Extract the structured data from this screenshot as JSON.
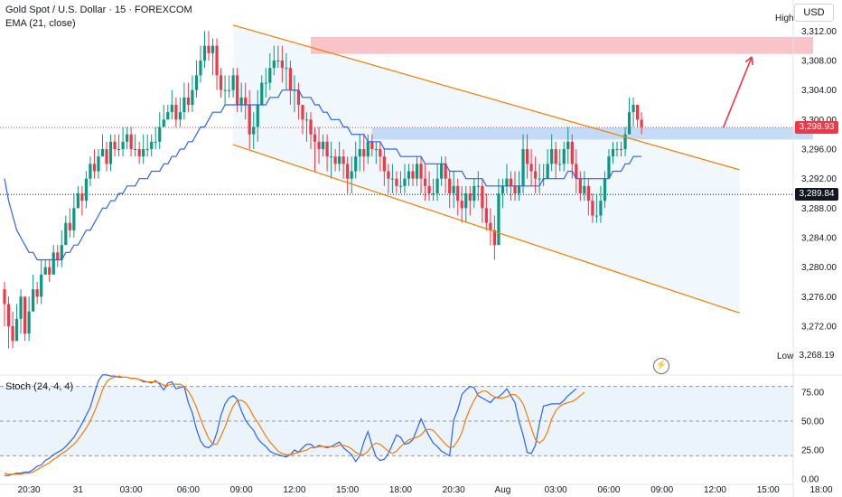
{
  "header": {
    "title": "Gold Spot / U.S. Dollar · 15 · FOREXCOM",
    "indicator": "EMA (21, close)"
  },
  "currency_button": "USD",
  "high_label": "High",
  "low_label": "Low",
  "low_value": "3,268.19",
  "current_price": "3,298.93",
  "marker_price": "3,289.84",
  "stoch_label": "Stoch (24, 4, 4)",
  "icons": {
    "alert": "lightning-icon"
  },
  "colors": {
    "up": "#089981",
    "down": "#f23645",
    "ema": "#2962ff",
    "channel": "#f57c00",
    "resistance_zone": "#f7b9bf",
    "support_zone": "#bbd6f7",
    "stoch_k": "#2962ff",
    "stoch_d": "#f57c00",
    "arrow": "#f23645"
  },
  "chart_data": [
    {
      "type": "candlestick",
      "title": "Gold Spot / U.S. Dollar · 15 · FOREXCOM",
      "ylim": [
        3266,
        3314
      ],
      "y_ticks": [
        "3,312.00",
        "3,308.00",
        "3,304.00",
        "3,300.00",
        "3,296.00",
        "3,292.00",
        "3,288.00",
        "3,284.00",
        "3,280.00",
        "3,276.00",
        "3,272.00"
      ],
      "y_tick_values": [
        3312,
        3308,
        3304,
        3300,
        3296,
        3292,
        3288,
        3284,
        3280,
        3276,
        3272
      ],
      "x_ticks": [
        "20:30",
        "31",
        "03:00",
        "06:00",
        "09:00",
        "12:00",
        "15:00",
        "18:00",
        "20:30",
        "Aug",
        "03:00",
        "06:00",
        "09:00",
        "12:00",
        "15:00",
        "18:00"
      ],
      "x_tick_index": [
        6,
        18,
        31,
        45,
        58,
        71,
        84,
        97,
        110,
        122,
        135,
        148,
        161,
        174,
        187,
        200
      ],
      "close": [
        3275,
        3272,
        3270,
        3273,
        3276,
        3271,
        3274,
        3277,
        3276,
        3279,
        3280,
        3279,
        3282,
        3281,
        3283,
        3286,
        3285,
        3288,
        3290,
        3289,
        3292,
        3294,
        3293,
        3295,
        3296,
        3294,
        3297,
        3296,
        3296,
        3297,
        3298,
        3296,
        3296,
        3295,
        3296,
        3296,
        3297,
        3297,
        3299,
        3300,
        3301,
        3302,
        3300,
        3301,
        3303,
        3302,
        3304,
        3306,
        3308,
        3310,
        3309,
        3310,
        3306,
        3304,
        3304,
        3304,
        3306,
        3302,
        3303,
        3302,
        3298,
        3299,
        3302,
        3305,
        3305,
        3307,
        3308,
        3308,
        3307,
        3307,
        3304,
        3304,
        3302,
        3300,
        3300,
        3298,
        3297,
        3296,
        3297,
        3295,
        3295,
        3294,
        3295,
        3294,
        3292,
        3293,
        3295,
        3296,
        3295,
        3297,
        3296,
        3296,
        3295,
        3293,
        3292,
        3292,
        3291,
        3291,
        3292,
        3293,
        3292,
        3294,
        3292,
        3291,
        3290,
        3290,
        3292,
        3294,
        3292,
        3290,
        3291,
        3289,
        3288,
        3290,
        3289,
        3291,
        3291,
        3288,
        3286,
        3285,
        3283,
        3290,
        3291,
        3292,
        3291,
        3290,
        3291,
        3296,
        3294,
        3293,
        3292,
        3292,
        3292,
        3294,
        3296,
        3294,
        3294,
        3296,
        3297,
        3294,
        3292,
        3290,
        3291,
        3289,
        3287,
        3287,
        3289,
        3292,
        3295,
        3296,
        3296,
        3296,
        3298,
        3301,
        3302,
        3300,
        3299
      ],
      "low": [
        3272,
        3269,
        3269,
        3270,
        3271,
        3270,
        3270,
        3275,
        3275,
        3275,
        3279,
        3278,
        3279,
        3280,
        3280,
        3283,
        3284,
        3284,
        3288,
        3287,
        3288,
        3291,
        3292,
        3292,
        3295,
        3293,
        3293,
        3295,
        3295,
        3295,
        3296,
        3295,
        3295,
        3294,
        3294,
        3295,
        3295,
        3296,
        3296,
        3299,
        3300,
        3300,
        3299,
        3299,
        3300,
        3301,
        3301,
        3303,
        3305,
        3307,
        3308,
        3306,
        3304,
        3303,
        3302,
        3303,
        3303,
        3301,
        3301,
        3300,
        3296,
        3296,
        3297,
        3302,
        3303,
        3304,
        3306,
        3307,
        3305,
        3304,
        3302,
        3301,
        3300,
        3298,
        3297,
        3296,
        3293,
        3294,
        3295,
        3293,
        3292,
        3293,
        3293,
        3292,
        3290,
        3290,
        3292,
        3293,
        3293,
        3294,
        3295,
        3294,
        3293,
        3291,
        3290,
        3290,
        3290,
        3290,
        3290,
        3291,
        3291,
        3291,
        3290,
        3289,
        3289,
        3289,
        3289,
        3291,
        3290,
        3288,
        3288,
        3287,
        3286,
        3286,
        3287,
        3288,
        3289,
        3286,
        3285,
        3283,
        3281,
        3283,
        3288,
        3290,
        3289,
        3289,
        3289,
        3290,
        3292,
        3291,
        3290,
        3290,
        3291,
        3292,
        3293,
        3292,
        3293,
        3293,
        3294,
        3292,
        3290,
        3289,
        3289,
        3287,
        3286,
        3286,
        3286,
        3288,
        3292,
        3294,
        3295,
        3295,
        3295,
        3298,
        3299,
        3299,
        3298
      ],
      "high": [
        3278,
        3276,
        3274,
        3275,
        3277,
        3276,
        3276,
        3279,
        3278,
        3281,
        3281,
        3281,
        3283,
        3283,
        3285,
        3287,
        3288,
        3290,
        3291,
        3291,
        3293,
        3295,
        3296,
        3296,
        3298,
        3297,
        3298,
        3298,
        3298,
        3299,
        3299,
        3299,
        3298,
        3297,
        3298,
        3298,
        3298,
        3299,
        3301,
        3302,
        3302,
        3304,
        3303,
        3303,
        3305,
        3305,
        3306,
        3308,
        3310,
        3312,
        3312,
        3311,
        3311,
        3307,
        3306,
        3306,
        3307,
        3307,
        3305,
        3305,
        3304,
        3301,
        3304,
        3306,
        3307,
        3309,
        3310,
        3310,
        3310,
        3309,
        3308,
        3306,
        3305,
        3302,
        3301,
        3301,
        3299,
        3299,
        3298,
        3298,
        3297,
        3296,
        3297,
        3296,
        3295,
        3295,
        3297,
        3298,
        3298,
        3298,
        3298,
        3297,
        3297,
        3296,
        3294,
        3294,
        3293,
        3293,
        3294,
        3294,
        3294,
        3295,
        3295,
        3294,
        3293,
        3292,
        3294,
        3295,
        3295,
        3293,
        3293,
        3292,
        3291,
        3291,
        3291,
        3292,
        3293,
        3292,
        3290,
        3288,
        3287,
        3292,
        3292,
        3294,
        3293,
        3293,
        3293,
        3298,
        3298,
        3296,
        3295,
        3294,
        3294,
        3296,
        3298,
        3297,
        3296,
        3297,
        3299,
        3298,
        3296,
        3293,
        3293,
        3292,
        3290,
        3290,
        3291,
        3293,
        3296,
        3297,
        3297,
        3297,
        3299,
        3303,
        3303,
        3302,
        3301
      ],
      "ema_values": [
        3292,
        3289,
        3287,
        3285,
        3284,
        3283,
        3282,
        3282,
        3281,
        3281,
        3281,
        3281,
        3281,
        3281,
        3281,
        3282,
        3282,
        3283,
        3283,
        3284,
        3285,
        3285,
        3286,
        3287,
        3288,
        3288,
        3289,
        3289,
        3290,
        3290,
        3291,
        3291,
        3291,
        3292,
        3292,
        3292,
        3293,
        3293,
        3293,
        3294,
        3294,
        3295,
        3295,
        3296,
        3296,
        3297,
        3297,
        3298,
        3299,
        3299,
        3300,
        3301,
        3301,
        3301,
        3302,
        3302,
        3302,
        3302,
        3302,
        3302,
        3302,
        3302,
        3302,
        3302,
        3302,
        3303,
        3303,
        3303,
        3304,
        3304,
        3304,
        3304,
        3304,
        3303,
        3303,
        3303,
        3302,
        3302,
        3301,
        3301,
        3300,
        3300,
        3300,
        3299,
        3299,
        3298,
        3298,
        3298,
        3298,
        3297,
        3297,
        3297,
        3297,
        3296,
        3296,
        3296,
        3296,
        3295,
        3295,
        3295,
        3295,
        3295,
        3295,
        3294,
        3294,
        3294,
        3294,
        3294,
        3294,
        3293,
        3293,
        3293,
        3293,
        3292,
        3292,
        3292,
        3292,
        3292,
        3291,
        3291,
        3291,
        3291,
        3291,
        3291,
        3291,
        3291,
        3291,
        3291,
        3291,
        3291,
        3291,
        3291,
        3292,
        3292,
        3292,
        3292,
        3292,
        3292,
        3293,
        3293,
        3292,
        3292,
        3292,
        3292,
        3292,
        3292,
        3292,
        3292,
        3292,
        3293,
        3293,
        3293,
        3294,
        3294,
        3295,
        3295,
        3295
      ],
      "channel": {
        "upper": {
          "from_index": 56,
          "from_price": 3312.8,
          "to_index": 180,
          "to_price": 3293.2
        },
        "lower": {
          "from_index": 56,
          "from_price": 3296.6,
          "to_index": 180,
          "to_price": 3273.8
        }
      },
      "zones": [
        {
          "name": "resistance",
          "from_index": 75,
          "to_index": 198,
          "top": 3311.2,
          "bottom": 3308.9
        },
        {
          "name": "support",
          "from_index": 90,
          "to_index": 198,
          "top": 3298.9,
          "bottom": 3297.3
        }
      ],
      "arrow": {
        "from_index": 176,
        "from_price": 3298.9,
        "to_index": 183,
        "to_price": 3308.5
      },
      "horizontal_lines": [
        {
          "price": 3298.93,
          "label": "3,298.93",
          "color": "#f23645"
        },
        {
          "price": 3289.84,
          "label": "3,289.84",
          "color": "#131722"
        }
      ]
    },
    {
      "type": "line",
      "title": "Stoch (24, 4, 4)",
      "ylim": [
        0,
        86
      ],
      "y_ticks": [
        "75.00",
        "50.00",
        "25.00",
        "0.00"
      ],
      "y_tick_values": [
        75,
        50,
        25,
        0
      ],
      "bands": [
        80,
        50,
        20
      ],
      "series": [
        {
          "values": [
            3,
            3,
            4,
            5,
            5,
            6,
            6,
            8,
            11,
            12,
            16,
            18,
            21,
            23,
            25,
            28,
            32,
            36,
            42,
            48,
            55,
            62,
            74,
            85,
            90,
            90,
            89,
            89,
            88,
            88,
            88,
            87,
            87,
            86,
            84,
            84,
            83,
            85,
            82,
            77,
            83,
            84,
            78,
            79,
            80,
            66,
            57,
            43,
            33,
            28,
            27,
            30,
            40,
            55,
            65,
            70,
            72,
            69,
            59,
            51,
            46,
            42,
            35,
            31,
            28,
            24,
            22,
            21,
            20,
            19,
            21,
            25,
            23,
            27,
            30,
            30,
            27,
            29,
            28,
            27,
            28,
            30,
            32,
            27,
            24,
            21,
            15,
            20,
            32,
            41,
            29,
            19,
            16,
            17,
            22,
            30,
            38,
            36,
            30,
            31,
            34,
            43,
            52,
            44,
            37,
            31,
            28,
            24,
            22,
            20,
            51,
            60,
            73,
            77,
            80,
            79,
            72,
            70,
            68,
            66,
            70,
            71,
            74,
            78,
            72,
            66,
            50,
            38,
            23,
            22,
            29,
            48,
            63,
            64,
            65,
            65,
            65,
            68,
            72,
            75,
            78
          ]
        },
        {
          "values": [
            5,
            4,
            4,
            4,
            4,
            5,
            5,
            6,
            8,
            10,
            12,
            14,
            17,
            19,
            22,
            24,
            27,
            30,
            34,
            39,
            44,
            50,
            58,
            67,
            77,
            84,
            87,
            88,
            89,
            88,
            88,
            87,
            87,
            86,
            85,
            84,
            84,
            84,
            83,
            81,
            81,
            82,
            82,
            82,
            80,
            76,
            70,
            62,
            52,
            43,
            35,
            30,
            30,
            37,
            45,
            55,
            63,
            68,
            68,
            66,
            61,
            54,
            49,
            43,
            37,
            32,
            28,
            24,
            22,
            21,
            21,
            22,
            23,
            24,
            25,
            27,
            27,
            28,
            28,
            28,
            28,
            28,
            29,
            29,
            28,
            26,
            23,
            21,
            21,
            24,
            29,
            31,
            30,
            27,
            24,
            22,
            24,
            28,
            31,
            34,
            35,
            36,
            38,
            42,
            43,
            42,
            38,
            34,
            30,
            27,
            28,
            33,
            40,
            52,
            61,
            68,
            74,
            76,
            76,
            73,
            71,
            70,
            70,
            71,
            73,
            73,
            70,
            65,
            55,
            44,
            34,
            31,
            34,
            41,
            52,
            59,
            63,
            65,
            66,
            67,
            69,
            72,
            75
          ]
        }
      ]
    }
  ]
}
